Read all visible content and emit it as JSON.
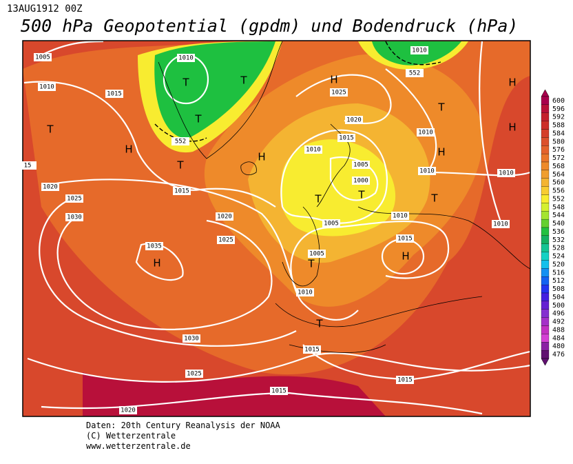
{
  "header": {
    "date": "13AUG1912 00Z",
    "title": "500 hPa Geopotential (gpdm) und Bodendruck (hPa)"
  },
  "footer": {
    "lines": [
      "Daten: 20th Century Reanalysis der NOAA",
      "(C) Wetterzentrale",
      "www.wetterzentrale.de"
    ]
  },
  "colorbar": {
    "values": [
      600,
      596,
      592,
      588,
      584,
      580,
      576,
      572,
      568,
      564,
      560,
      556,
      552,
      548,
      544,
      540,
      536,
      532,
      528,
      524,
      520,
      516,
      512,
      508,
      504,
      500,
      496,
      492,
      488,
      484,
      480,
      476
    ],
    "colors": [
      "#a8004c",
      "#b81038",
      "#c4202c",
      "#cc2e28",
      "#d43e2a",
      "#dc502c",
      "#e4622c",
      "#ea762a",
      "#ee8a2a",
      "#f09e2e",
      "#f4b432",
      "#f8cc32",
      "#f8ec30",
      "#d4f030",
      "#a4e430",
      "#64d030",
      "#22c040",
      "#14b062",
      "#14c494",
      "#14d2c4",
      "#14c0ec",
      "#1490f2",
      "#1462f2",
      "#2434f0",
      "#4420e0",
      "#6420d2",
      "#8430d0",
      "#a430c8",
      "#c230c2",
      "#d440d4",
      "#8a20a4",
      "#601070"
    ]
  },
  "isobar_labels": [
    1005,
    1010,
    1010,
    1015,
    1010,
    552,
    552,
    1025,
    1020,
    1015,
    1010,
    1010,
    1005,
    1000,
    1010,
    1010,
    15,
    1020,
    1015,
    1025,
    1030,
    1020,
    1005,
    1010,
    1025,
    1035,
    1015,
    1005,
    1010,
    1010,
    1030,
    1015,
    1025,
    1015,
    1015,
    1020
  ],
  "pressure_centers": [
    "T",
    "H",
    "T",
    "T",
    "T",
    "T",
    "H",
    "H",
    "T",
    "H",
    "H",
    "H",
    "T",
    "T",
    "T",
    "H",
    "T",
    "H",
    "T"
  ]
}
